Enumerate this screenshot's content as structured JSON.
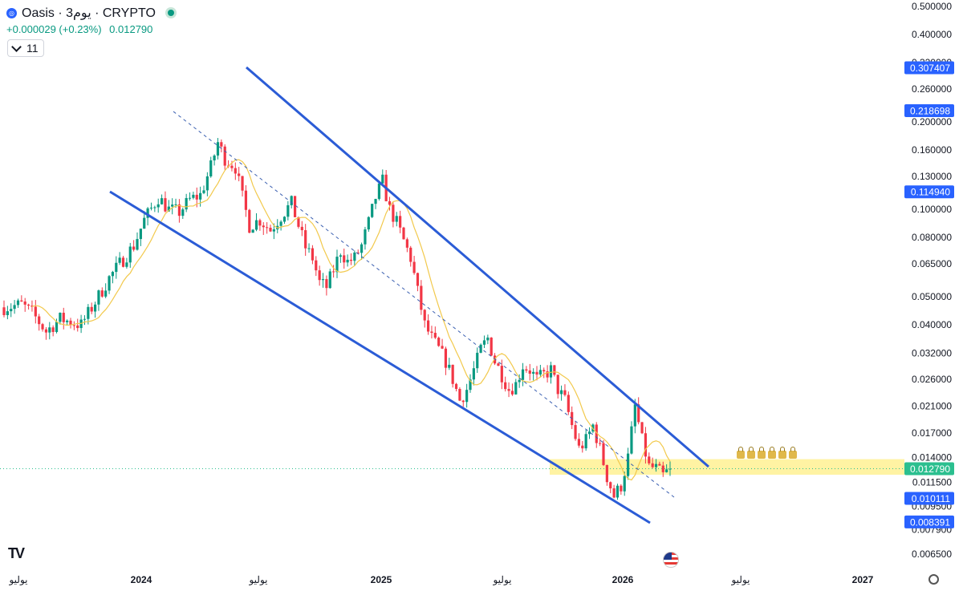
{
  "header": {
    "symbol": "Oasis · 3يوم · CRYPTO",
    "change": "+0.000029 (+0.23%)",
    "price": "0.012790",
    "indicator_count": "11",
    "coin_icon": "oasis-coin-icon"
  },
  "colors": {
    "up": "#089981",
    "down": "#f23645",
    "channel": "#2b5cd6",
    "ma": "#f2c94c",
    "zone": "#fff3a3",
    "label": "#2962ff",
    "last": "#2bbf8f"
  },
  "chart_data": {
    "type": "candlestick",
    "scale": "log",
    "ylim": [
      0.0062,
      0.52
    ],
    "x_ticks": [
      "يوليو",
      "2024",
      "يوليو",
      "2025",
      "يوليو",
      "2026",
      "يوليو",
      "2027"
    ],
    "y_ticks": [
      "0.500000",
      "0.400000",
      "0.320000",
      "0.260000",
      "0.200000",
      "0.160000",
      "0.130000",
      "0.100000",
      "0.080000",
      "0.065000",
      "0.050000",
      "0.040000",
      "0.032000",
      "0.026000",
      "0.021000",
      "0.017000",
      "0.014000",
      "0.011500",
      "0.009500",
      "0.007900",
      "0.006500"
    ],
    "y_tick_values": [
      0.5,
      0.4,
      0.32,
      0.26,
      0.2,
      0.16,
      0.13,
      0.1,
      0.08,
      0.065,
      0.05,
      0.04,
      0.032,
      0.026,
      0.021,
      0.017,
      0.014,
      0.0115,
      0.0095,
      0.0079,
      0.0065
    ],
    "price_labels": [
      {
        "text": "0.307407",
        "value": 0.307407,
        "kind": "blue"
      },
      {
        "text": "0.218698",
        "value": 0.218698,
        "kind": "blue"
      },
      {
        "text": "0.114940",
        "value": 0.11494,
        "kind": "blue"
      },
      {
        "text": "0.012790",
        "value": 0.01279,
        "kind": "last"
      },
      {
        "text": "0.010111",
        "value": 0.010111,
        "kind": "blue"
      },
      {
        "text": "0.008391",
        "value": 0.008391,
        "kind": "blue"
      }
    ],
    "path": [
      [
        0,
        0.046
      ],
      [
        5,
        0.047
      ],
      [
        8,
        0.044
      ],
      [
        12,
        0.038
      ],
      [
        16,
        0.042
      ],
      [
        22,
        0.04
      ],
      [
        26,
        0.048
      ],
      [
        30,
        0.058
      ],
      [
        33,
        0.065
      ],
      [
        37,
        0.075
      ],
      [
        40,
        0.092
      ],
      [
        44,
        0.11
      ],
      [
        47,
        0.1
      ],
      [
        50,
        0.098
      ],
      [
        53,
        0.108
      ],
      [
        56,
        0.112
      ],
      [
        59,
        0.14
      ],
      [
        61,
        0.17
      ],
      [
        63,
        0.15
      ],
      [
        66,
        0.14
      ],
      [
        68,
        0.11
      ],
      [
        70,
        0.088
      ],
      [
        73,
        0.092
      ],
      [
        76,
        0.085
      ],
      [
        79,
        0.095
      ],
      [
        82,
        0.105
      ],
      [
        84,
        0.088
      ],
      [
        86,
        0.074
      ],
      [
        88,
        0.068
      ],
      [
        90,
        0.056
      ],
      [
        92,
        0.054
      ],
      [
        94,
        0.062
      ],
      [
        96,
        0.072
      ],
      [
        98,
        0.066
      ],
      [
        100,
        0.068
      ],
      [
        102,
        0.075
      ],
      [
        104,
        0.09
      ],
      [
        106,
        0.11
      ],
      [
        108,
        0.125
      ],
      [
        110,
        0.1
      ],
      [
        112,
        0.09
      ],
      [
        114,
        0.078
      ],
      [
        116,
        0.068
      ],
      [
        118,
        0.052
      ],
      [
        120,
        0.04
      ],
      [
        122,
        0.036
      ],
      [
        124,
        0.033
      ],
      [
        126,
        0.03
      ],
      [
        128,
        0.026
      ],
      [
        130,
        0.022
      ],
      [
        132,
        0.024
      ],
      [
        134,
        0.028
      ],
      [
        136,
        0.033
      ],
      [
        138,
        0.036
      ],
      [
        140,
        0.03
      ],
      [
        142,
        0.027
      ],
      [
        144,
        0.024
      ],
      [
        146,
        0.025
      ],
      [
        148,
        0.029
      ],
      [
        150,
        0.028
      ],
      [
        152,
        0.026
      ],
      [
        154,
        0.027
      ],
      [
        156,
        0.028
      ],
      [
        158,
        0.024
      ],
      [
        160,
        0.022
      ],
      [
        162,
        0.018
      ],
      [
        164,
        0.015
      ],
      [
        166,
        0.016
      ],
      [
        168,
        0.018
      ],
      [
        170,
        0.015
      ],
      [
        172,
        0.012
      ],
      [
        174,
        0.0103
      ],
      [
        176,
        0.0112
      ],
      [
        178,
        0.014
      ],
      [
        180,
        0.021
      ],
      [
        182,
        0.016
      ],
      [
        184,
        0.013
      ],
      [
        186,
        0.0128
      ],
      [
        188,
        0.0121
      ],
      [
        190,
        0.01279
      ]
    ],
    "n": 190,
    "ma_period": 8
  }
}
